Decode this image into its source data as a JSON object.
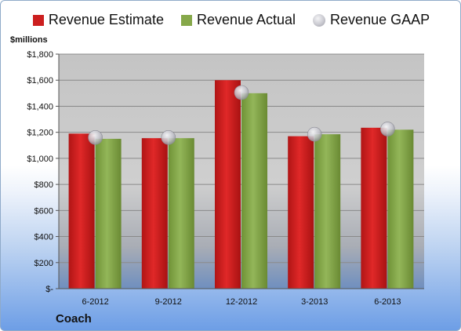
{
  "colors": {
    "estimate": "#cc1f1f",
    "actual": "#86a84a",
    "gaap": "#bdbdc6"
  },
  "unit_label": "$millions",
  "company": "Coach",
  "chart_data": {
    "type": "bar",
    "categories": [
      "6-2012",
      "9-2012",
      "12-2012",
      "3-2013",
      "6-2013"
    ],
    "series": [
      {
        "name": "Revenue Estimate",
        "values": [
          1190,
          1155,
          1600,
          1170,
          1235
        ]
      },
      {
        "name": "Revenue Actual",
        "values": [
          1150,
          1155,
          1500,
          1185,
          1220
        ]
      },
      {
        "name": "Revenue GAAP",
        "values": [
          1160,
          1160,
          1505,
          1185,
          1225
        ],
        "style": "marker"
      }
    ],
    "ylim": [
      0,
      1800
    ],
    "yticks": [
      0,
      200,
      400,
      600,
      800,
      1000,
      1200,
      1400,
      1600,
      1800
    ],
    "ytick_labels": [
      "$-",
      "$200",
      "$400",
      "$600",
      "$800",
      "$1,000",
      "$1,200",
      "$1,400",
      "$1,600",
      "$1,800"
    ],
    "grid": true,
    "legend_position": "top"
  }
}
